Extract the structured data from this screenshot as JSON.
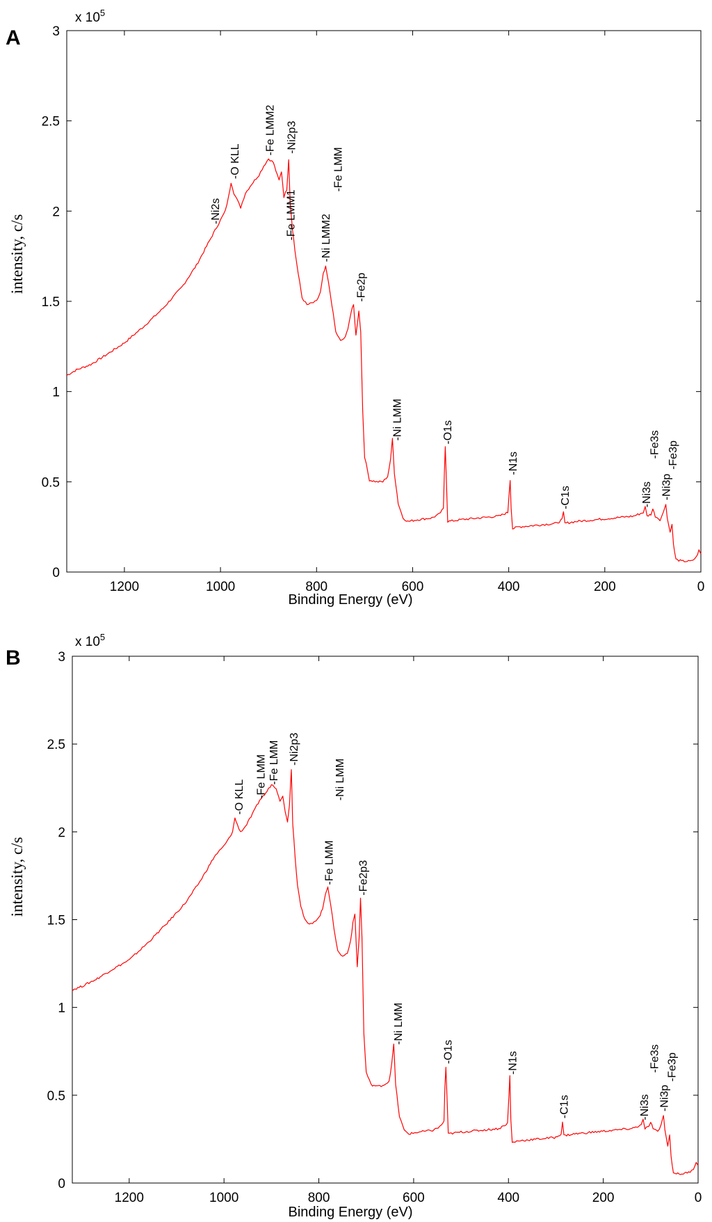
{
  "chart_data": [
    {
      "type": "line",
      "panel": "A",
      "xlabel": "Binding Energy (eV)",
      "ylabel": "intensity, c/s",
      "multiplier": "x 10",
      "multiplier_exp": "5",
      "xlim": [
        1320,
        0
      ],
      "ylim": [
        0,
        3
      ],
      "xticks": [
        "1200",
        "1000",
        "800",
        "600",
        "400",
        "200",
        "0"
      ],
      "yticks": [
        "0",
        "0.5",
        "1",
        "1.5",
        "2",
        "2.5",
        "3"
      ],
      "series": [
        {
          "name": "spectrum",
          "color": "#ff0000",
          "points": [
            [
              1320,
              1.09
            ],
            [
              1300,
              1.12
            ],
            [
              1270,
              1.15
            ],
            [
              1240,
              1.2
            ],
            [
              1200,
              1.27
            ],
            [
              1160,
              1.36
            ],
            [
              1120,
              1.46
            ],
            [
              1080,
              1.58
            ],
            [
              1050,
              1.7
            ],
            [
              1020,
              1.85
            ],
            [
              1000,
              1.95
            ],
            [
              990,
              2.0
            ],
            [
              983,
              2.08
            ],
            [
              978,
              2.16
            ],
            [
              972,
              2.1
            ],
            [
              965,
              2.06
            ],
            [
              958,
              2.02
            ],
            [
              948,
              2.1
            ],
            [
              935,
              2.15
            ],
            [
              920,
              2.2
            ],
            [
              910,
              2.25
            ],
            [
              900,
              2.29
            ],
            [
              890,
              2.27
            ],
            [
              882,
              2.2
            ],
            [
              878,
              2.17
            ],
            [
              873,
              2.22
            ],
            [
              868,
              2.08
            ],
            [
              862,
              2.12
            ],
            [
              858,
              2.29
            ],
            [
              855,
              2.05
            ],
            [
              850,
              1.9
            ],
            [
              845,
              1.78
            ],
            [
              838,
              1.65
            ],
            [
              830,
              1.52
            ],
            [
              820,
              1.48
            ],
            [
              810,
              1.49
            ],
            [
              800,
              1.5
            ],
            [
              792,
              1.55
            ],
            [
              786,
              1.65
            ],
            [
              781,
              1.69
            ],
            [
              775,
              1.6
            ],
            [
              768,
              1.48
            ],
            [
              760,
              1.33
            ],
            [
              750,
              1.28
            ],
            [
              740,
              1.3
            ],
            [
              735,
              1.35
            ],
            [
              728,
              1.44
            ],
            [
              723,
              1.48
            ],
            [
              718,
              1.31
            ],
            [
              712,
              1.45
            ],
            [
              708,
              1.33
            ],
            [
              704,
              0.9
            ],
            [
              700,
              0.64
            ],
            [
              690,
              0.51
            ],
            [
              675,
              0.5
            ],
            [
              662,
              0.5
            ],
            [
              652,
              0.53
            ],
            [
              646,
              0.62
            ],
            [
              642,
              0.74
            ],
            [
              638,
              0.55
            ],
            [
              630,
              0.38
            ],
            [
              620,
              0.3
            ],
            [
              610,
              0.28
            ],
            [
              590,
              0.29
            ],
            [
              560,
              0.3
            ],
            [
              545,
              0.32
            ],
            [
              536,
              0.35
            ],
            [
              534,
              0.55
            ],
            [
              532,
              0.7
            ],
            [
              529,
              0.45
            ],
            [
              527,
              0.28
            ],
            [
              500,
              0.29
            ],
            [
              460,
              0.3
            ],
            [
              420,
              0.31
            ],
            [
              402,
              0.33
            ],
            [
              399,
              0.44
            ],
            [
              397,
              0.51
            ],
            [
              395,
              0.36
            ],
            [
              392,
              0.24
            ],
            [
              380,
              0.25
            ],
            [
              340,
              0.26
            ],
            [
              300,
              0.27
            ],
            [
              289,
              0.29
            ],
            [
              286,
              0.33
            ],
            [
              283,
              0.27
            ],
            [
              260,
              0.28
            ],
            [
              220,
              0.29
            ],
            [
              180,
              0.3
            ],
            [
              140,
              0.31
            ],
            [
              120,
              0.33
            ],
            [
              116,
              0.36
            ],
            [
              112,
              0.31
            ],
            [
              104,
              0.32
            ],
            [
              100,
              0.35
            ],
            [
              95,
              0.31
            ],
            [
              85,
              0.29
            ],
            [
              78,
              0.33
            ],
            [
              73,
              0.38
            ],
            [
              70,
              0.3
            ],
            [
              64,
              0.22
            ],
            [
              60,
              0.27
            ],
            [
              57,
              0.15
            ],
            [
              52,
              0.07
            ],
            [
              40,
              0.06
            ],
            [
              20,
              0.06
            ],
            [
              10,
              0.08
            ],
            [
              4,
              0.12
            ],
            [
              0,
              0.1
            ]
          ]
        }
      ],
      "annotations": [
        {
          "label": "-Ni2s",
          "x": 1010,
          "y": 1.92
        },
        {
          "label": "-O KLL",
          "x": 970,
          "y": 2.17
        },
        {
          "label": "-Fe LMM2",
          "x": 897,
          "y": 2.3
        },
        {
          "label": "-Ni2p3",
          "x": 852,
          "y": 2.31
        },
        {
          "label": "-Fe LMM1",
          "x": 853,
          "y": 1.83
        },
        {
          "label": "-Ni LMM2",
          "x": 780,
          "y": 1.71
        },
        {
          "label": "-Fe LMM",
          "x": 755,
          "y": 2.1
        },
        {
          "label": "-Fe2p",
          "x": 707,
          "y": 1.49
        },
        {
          "label": "-Ni LMM",
          "x": 632,
          "y": 0.72
        },
        {
          "label": "-O1s",
          "x": 527,
          "y": 0.7
        },
        {
          "label": "-N1s",
          "x": 391,
          "y": 0.53
        },
        {
          "label": "-C1s",
          "x": 282,
          "y": 0.34
        },
        {
          "label": "-Ni3s",
          "x": 113,
          "y": 0.35
        },
        {
          "label": "-Fe3s",
          "x": 96,
          "y": 0.62
        },
        {
          "label": "-Ni3p",
          "x": 72,
          "y": 0.39
        },
        {
          "label": "-Fe3p",
          "x": 58,
          "y": 0.56
        }
      ]
    },
    {
      "type": "line",
      "panel": "B",
      "xlabel": "Binding Energy (eV)",
      "ylabel": "intensity, c/s",
      "multiplier": "x 10",
      "multiplier_exp": "5",
      "xlim": [
        1320,
        0
      ],
      "ylim": [
        0,
        3
      ],
      "xticks": [
        "1200",
        "1000",
        "800",
        "600",
        "400",
        "200",
        "0"
      ],
      "yticks": [
        "0",
        "0.5",
        "1",
        "1.5",
        "2",
        "2.5",
        "3"
      ],
      "series": [
        {
          "name": "spectrum",
          "color": "#ff0000",
          "points": [
            [
              1320,
              1.1
            ],
            [
              1300,
              1.12
            ],
            [
              1270,
              1.16
            ],
            [
              1240,
              1.21
            ],
            [
              1200,
              1.27
            ],
            [
              1160,
              1.37
            ],
            [
              1120,
              1.48
            ],
            [
              1080,
              1.6
            ],
            [
              1050,
              1.72
            ],
            [
              1020,
              1.86
            ],
            [
              1000,
              1.92
            ],
            [
              990,
              1.96
            ],
            [
              982,
              2.0
            ],
            [
              977,
              2.08
            ],
            [
              972,
              2.04
            ],
            [
              965,
              2.0
            ],
            [
              955,
              2.03
            ],
            [
              940,
              2.1
            ],
            [
              925,
              2.18
            ],
            [
              912,
              2.22
            ],
            [
              900,
              2.27
            ],
            [
              890,
              2.25
            ],
            [
              882,
              2.18
            ],
            [
              876,
              2.2
            ],
            [
              871,
              2.12
            ],
            [
              866,
              2.06
            ],
            [
              862,
              2.15
            ],
            [
              858,
              2.36
            ],
            [
              855,
              2.05
            ],
            [
              850,
              1.85
            ],
            [
              845,
              1.7
            ],
            [
              838,
              1.58
            ],
            [
              830,
              1.5
            ],
            [
              820,
              1.47
            ],
            [
              810,
              1.49
            ],
            [
              800,
              1.51
            ],
            [
              792,
              1.56
            ],
            [
              786,
              1.65
            ],
            [
              781,
              1.69
            ],
            [
              775,
              1.58
            ],
            [
              768,
              1.45
            ],
            [
              760,
              1.32
            ],
            [
              750,
              1.29
            ],
            [
              740,
              1.31
            ],
            [
              733,
              1.38
            ],
            [
              728,
              1.48
            ],
            [
              724,
              1.53
            ],
            [
              719,
              1.23
            ],
            [
              715,
              1.4
            ],
            [
              712,
              1.62
            ],
            [
              709,
              1.4
            ],
            [
              705,
              0.85
            ],
            [
              700,
              0.63
            ],
            [
              690,
              0.56
            ],
            [
              675,
              0.55
            ],
            [
              662,
              0.56
            ],
            [
              652,
              0.58
            ],
            [
              646,
              0.68
            ],
            [
              642,
              0.79
            ],
            [
              638,
              0.56
            ],
            [
              630,
              0.38
            ],
            [
              620,
              0.3
            ],
            [
              610,
              0.28
            ],
            [
              590,
              0.29
            ],
            [
              560,
              0.3
            ],
            [
              545,
              0.32
            ],
            [
              536,
              0.35
            ],
            [
              534,
              0.55
            ],
            [
              532,
              0.66
            ],
            [
              529,
              0.44
            ],
            [
              527,
              0.28
            ],
            [
              500,
              0.29
            ],
            [
              460,
              0.3
            ],
            [
              420,
              0.31
            ],
            [
              402,
              0.34
            ],
            [
              399,
              0.5
            ],
            [
              397,
              0.61
            ],
            [
              395,
              0.36
            ],
            [
              392,
              0.23
            ],
            [
              380,
              0.24
            ],
            [
              340,
              0.25
            ],
            [
              300,
              0.26
            ],
            [
              289,
              0.28
            ],
            [
              286,
              0.35
            ],
            [
              283,
              0.27
            ],
            [
              260,
              0.28
            ],
            [
              220,
              0.29
            ],
            [
              180,
              0.3
            ],
            [
              140,
              0.31
            ],
            [
              120,
              0.33
            ],
            [
              116,
              0.36
            ],
            [
              112,
              0.31
            ],
            [
              104,
              0.32
            ],
            [
              100,
              0.35
            ],
            [
              95,
              0.31
            ],
            [
              85,
              0.29
            ],
            [
              78,
              0.33
            ],
            [
              73,
              0.39
            ],
            [
              70,
              0.3
            ],
            [
              64,
              0.21
            ],
            [
              60,
              0.28
            ],
            [
              57,
              0.15
            ],
            [
              52,
              0.06
            ],
            [
              40,
              0.05
            ],
            [
              20,
              0.06
            ],
            [
              10,
              0.08
            ],
            [
              4,
              0.12
            ],
            [
              0,
              0.1
            ]
          ]
        }
      ],
      "annotations": [
        {
          "label": "-O KLL",
          "x": 968,
          "y": 2.09
        },
        {
          "label": "-Fe LMM",
          "x": 922,
          "y": 2.18
        },
        {
          "label": "-Fe LMM",
          "x": 895,
          "y": 2.26
        },
        {
          "label": "-Ni2p3",
          "x": 852,
          "y": 2.37
        },
        {
          "label": "-Fe LMM",
          "x": 778,
          "y": 1.69
        },
        {
          "label": "-Ni LMM",
          "x": 755,
          "y": 2.17
        },
        {
          "label": "-Fe2p3",
          "x": 706,
          "y": 1.63
        },
        {
          "label": "-Ni LMM",
          "x": 632,
          "y": 0.78
        },
        {
          "label": "-O1s",
          "x": 527,
          "y": 0.67
        },
        {
          "label": "-N1s",
          "x": 391,
          "y": 0.61
        },
        {
          "label": "-C1s",
          "x": 282,
          "y": 0.36
        },
        {
          "label": "-Ni3s",
          "x": 113,
          "y": 0.35
        },
        {
          "label": "-Fe3s",
          "x": 92,
          "y": 0.62
        },
        {
          "label": "-Ni3p",
          "x": 71,
          "y": 0.4
        },
        {
          "label": "-Fe3p",
          "x": 55,
          "y": 0.57
        }
      ]
    }
  ]
}
